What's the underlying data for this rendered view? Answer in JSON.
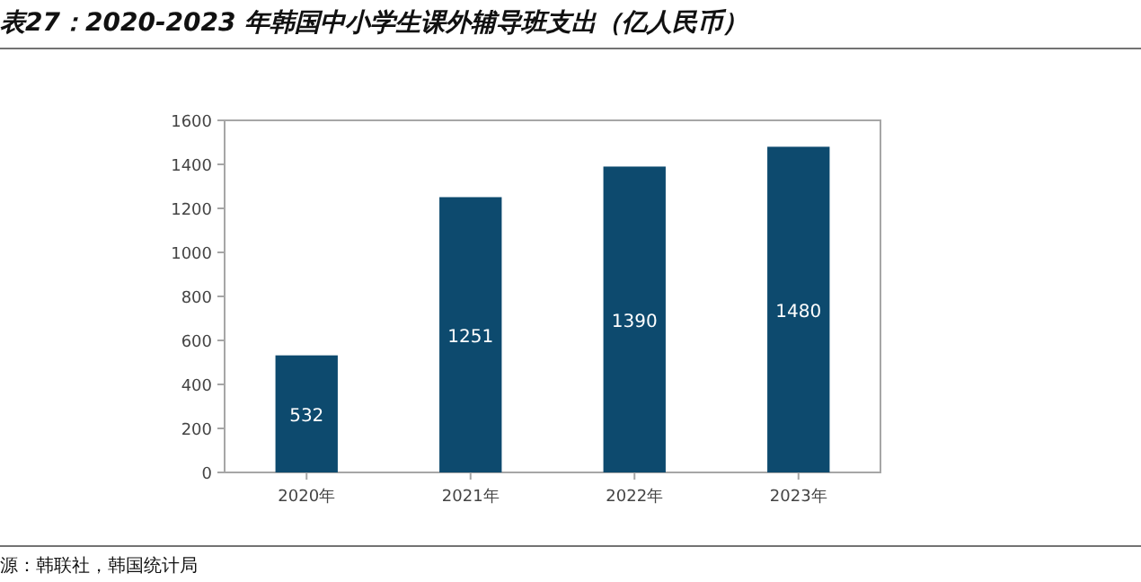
{
  "chart_data": {
    "type": "bar",
    "title": "表27：2020-2023 年韩国中小学生课外辅导班支出（亿人民币）",
    "categories": [
      "2020年",
      "2021年",
      "2022年",
      "2023年"
    ],
    "values": [
      532,
      1251,
      1390,
      1480
    ],
    "color": "#0d4a6e",
    "data_labels": true,
    "ylim": [
      0,
      1600
    ],
    "yticks": [
      0,
      200,
      400,
      600,
      800,
      1000,
      1200,
      1400,
      1600
    ],
    "grid": false,
    "annotations": [
      "源：韩联社，韩国统计局"
    ]
  }
}
